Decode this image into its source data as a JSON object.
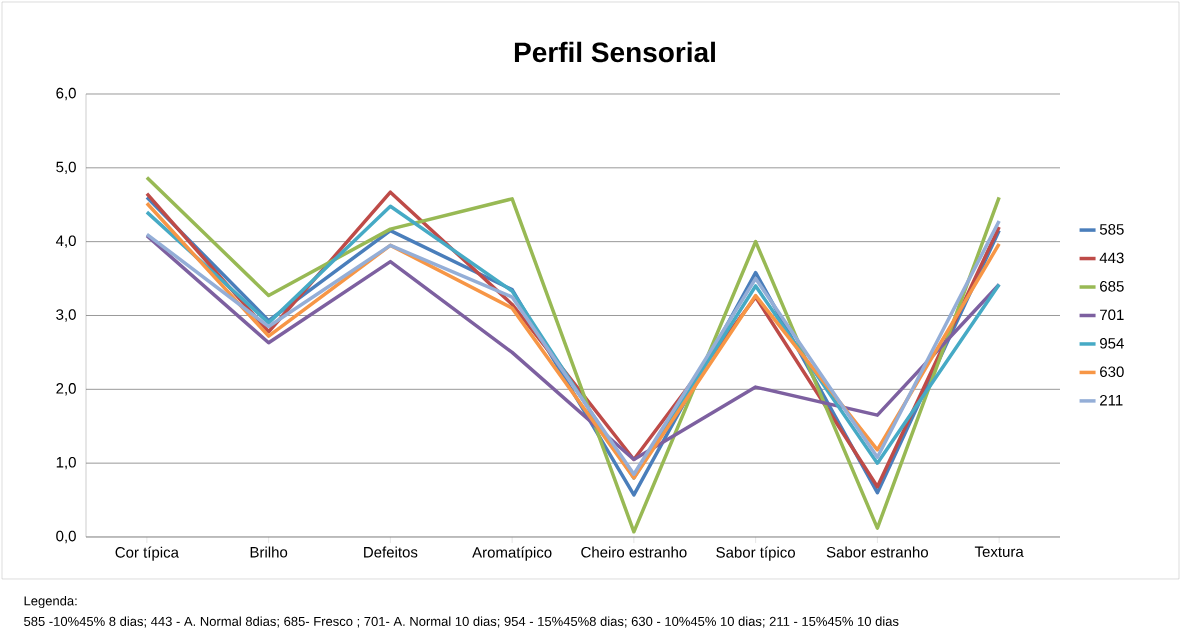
{
  "chart_data": {
    "type": "line",
    "title": "Perfil Sensorial",
    "categories": [
      "Cor típica",
      "Brilho",
      "Defeitos",
      "Aromatípico",
      "Cheiro estranho",
      "Sabor típico",
      "Sabor estranho",
      "Textura"
    ],
    "series": [
      {
        "name": "585",
        "color": "#4a7ebb",
        "values": [
          4.6,
          2.93,
          4.15,
          3.35,
          0.57,
          3.58,
          0.6,
          4.15
        ]
      },
      {
        "name": "443",
        "color": "#be4b48",
        "values": [
          4.65,
          2.78,
          4.67,
          3.15,
          1.05,
          3.25,
          0.68,
          4.2
        ]
      },
      {
        "name": "685",
        "color": "#98b954",
        "values": [
          4.87,
          3.27,
          4.17,
          4.58,
          0.07,
          4.0,
          0.12,
          4.6
        ]
      },
      {
        "name": "701",
        "color": "#7d60a0",
        "values": [
          4.08,
          2.63,
          3.73,
          2.5,
          1.05,
          2.03,
          1.65,
          3.42
        ]
      },
      {
        "name": "954",
        "color": "#46aac5",
        "values": [
          4.4,
          2.9,
          4.48,
          3.33,
          0.8,
          3.4,
          1.0,
          3.42
        ]
      },
      {
        "name": "630",
        "color": "#f79646",
        "values": [
          4.52,
          2.72,
          3.95,
          3.1,
          0.8,
          3.27,
          1.18,
          3.97
        ]
      },
      {
        "name": "211",
        "color": "#94aed7",
        "values": [
          4.1,
          2.85,
          3.95,
          3.25,
          0.85,
          3.5,
          1.08,
          4.28
        ]
      }
    ],
    "ylim": [
      0,
      6
    ],
    "yticks": [
      {
        "value": 0,
        "label": "0,0"
      },
      {
        "value": 1,
        "label": "1,0"
      },
      {
        "value": 2,
        "label": "2,0"
      },
      {
        "value": 3,
        "label": "3,0"
      },
      {
        "value": 4,
        "label": "4,0"
      },
      {
        "value": 5,
        "label": "5,0"
      },
      {
        "value": 6,
        "label": "6,0"
      }
    ],
    "grid": "y",
    "legend": "right",
    "marker": "none",
    "line_style": "solid",
    "annotations": [
      "Legenda:",
      "585 -10%45% 8 dias; 443 -  A. Normal 8dias; 685-  Fresco ; 701- A. Normal 10 dias; 954 - 15%45%8 dias; 630 - 10%45% 10 dias; 211 - 15%45%  10 dias"
    ]
  }
}
